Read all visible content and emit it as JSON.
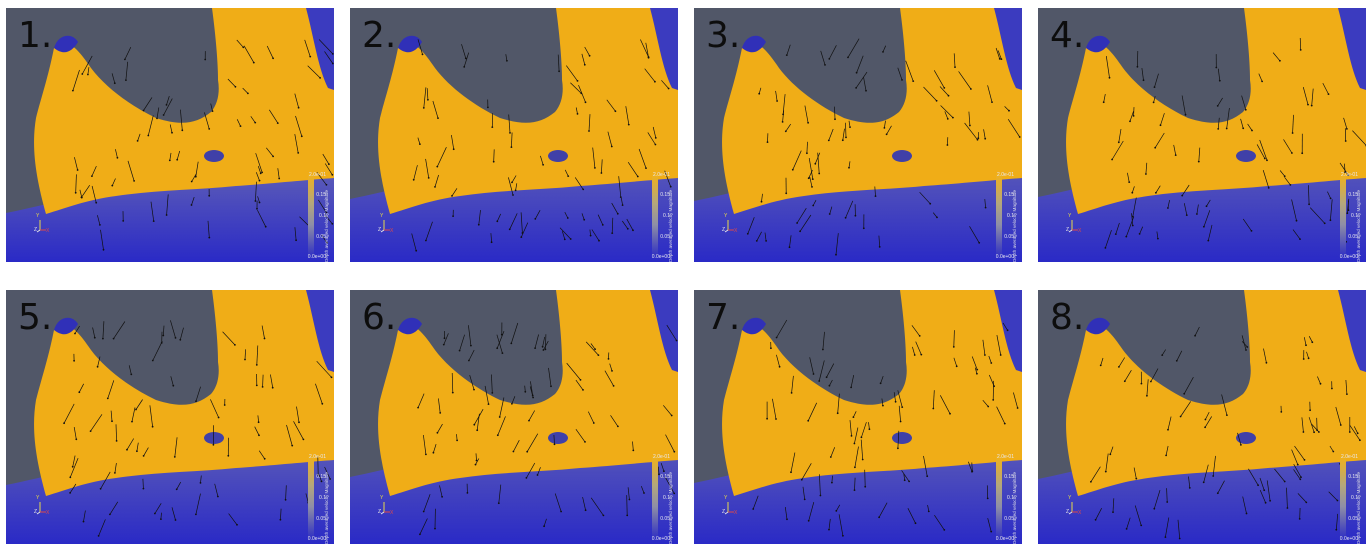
{
  "figure": {
    "background": "#ffffff",
    "panel_background": "#515768",
    "high_color": "#f0ad17",
    "low_color": "#2b2bc2"
  },
  "panels": [
    {
      "label": "1."
    },
    {
      "label": "2."
    },
    {
      "label": "3."
    },
    {
      "label": "4."
    },
    {
      "label": "5."
    },
    {
      "label": "6."
    },
    {
      "label": "7."
    },
    {
      "label": "8."
    }
  ],
  "colorbar": {
    "title": "Depth averaged velocity Magnitude",
    "ticks": [
      "2.0e-01",
      "0.15",
      "0.1",
      "0.05",
      "0.0e+00"
    ],
    "gradient": [
      "#f2b118",
      "#b4a77c",
      "#8f8fa6",
      "#2b2bc4"
    ]
  },
  "axes_triad": {
    "y": "Y",
    "z": "Z",
    "x": "X",
    "y_color": "#e6d94a",
    "z_color": "#e8e8e8",
    "x_color": "#e04848"
  }
}
